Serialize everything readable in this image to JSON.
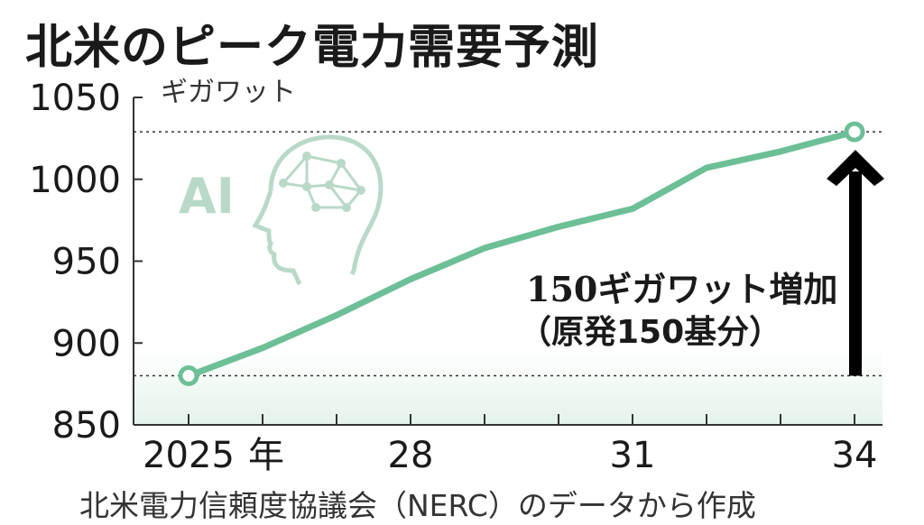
{
  "title": "北米のピーク電力需要予測",
  "source": "北米電力信頼度協議会（NERC）のデータから作成",
  "annotation": {
    "line1": "150ギガワット増加",
    "line2": "（原発150基分）"
  },
  "ai_label": "AI",
  "ai_icon": "head-with-network-icon",
  "colors": {
    "line": "#6cbf96",
    "band": "#e4f3ea",
    "arrow": "#000000",
    "ai_icon": "#b9d9c8"
  },
  "chart_data": {
    "type": "line",
    "ylabel": "ギガワット",
    "x": [
      2025,
      2026,
      2027,
      2028,
      2029,
      2030,
      2031,
      2032,
      2033,
      2034
    ],
    "x_tick_labels": [
      {
        "x": 2025,
        "label": "2025",
        "suffix": "年"
      },
      {
        "x": 2028,
        "label": "28"
      },
      {
        "x": 2031,
        "label": "31"
      },
      {
        "x": 2034,
        "label": "34"
      }
    ],
    "series": [
      {
        "values": [
          880,
          897,
          917,
          939,
          958,
          971,
          982,
          1007,
          1017,
          1029
        ]
      }
    ],
    "ylim": [
      850,
      1050
    ],
    "yticks": [
      850,
      900,
      950,
      1000,
      1050
    ],
    "reference_lines": [
      880,
      1029
    ],
    "annotation_arrow": {
      "from": 880,
      "to": 1029
    }
  }
}
